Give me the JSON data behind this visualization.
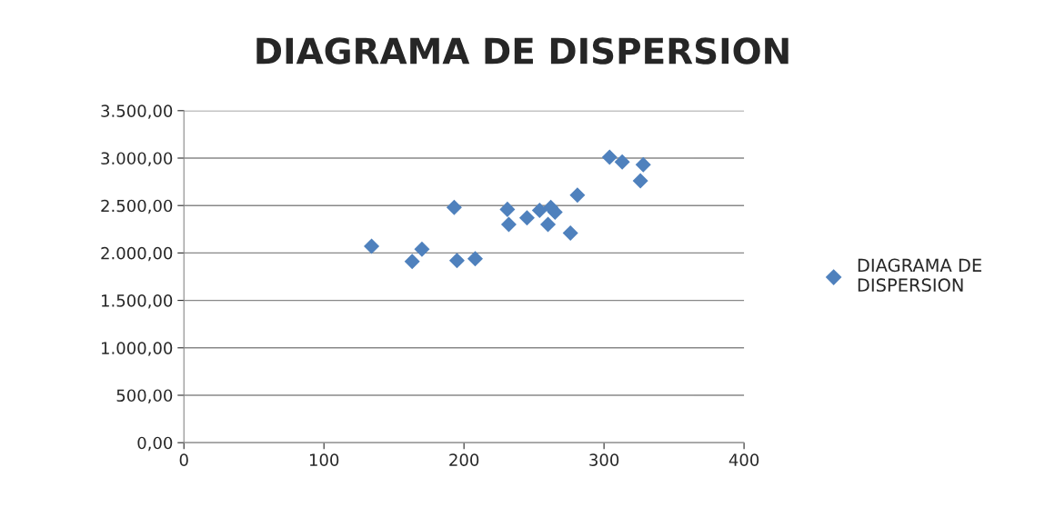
{
  "chart_data": {
    "type": "scatter",
    "title": "DIAGRAMA DE DISPERSION",
    "x": [
      134,
      163,
      170,
      193,
      195,
      208,
      231,
      232,
      245,
      254,
      262,
      265,
      260,
      276,
      281,
      304,
      313,
      328,
      326
    ],
    "series": [
      {
        "name": "DIAGRAMA DE DISPERSION",
        "color": "#4f81bd",
        "values": [
          2070,
          1910,
          2040,
          2480,
          1920,
          1940,
          2460,
          2300,
          2370,
          2450,
          2480,
          2430,
          2300,
          2210,
          2610,
          3010,
          2960,
          2930,
          2760
        ]
      }
    ],
    "xlim": [
      0,
      400
    ],
    "xticks": [
      0,
      100,
      200,
      300,
      400
    ],
    "ylim": [
      0,
      3500
    ],
    "yticks": [
      {
        "value": 0,
        "label": "0,00"
      },
      {
        "value": 500,
        "label": "500,00"
      },
      {
        "value": 1000,
        "label": "1.000,00"
      },
      {
        "value": 1500,
        "label": "1.500,00"
      },
      {
        "value": 2000,
        "label": "2.000,00"
      },
      {
        "value": 2500,
        "label": "2.500,00"
      },
      {
        "value": 3000,
        "label": "3.000,00"
      },
      {
        "value": 3500,
        "label": "3.500,00"
      }
    ],
    "grid": "y",
    "legend": "right",
    "marker": "diamond"
  }
}
